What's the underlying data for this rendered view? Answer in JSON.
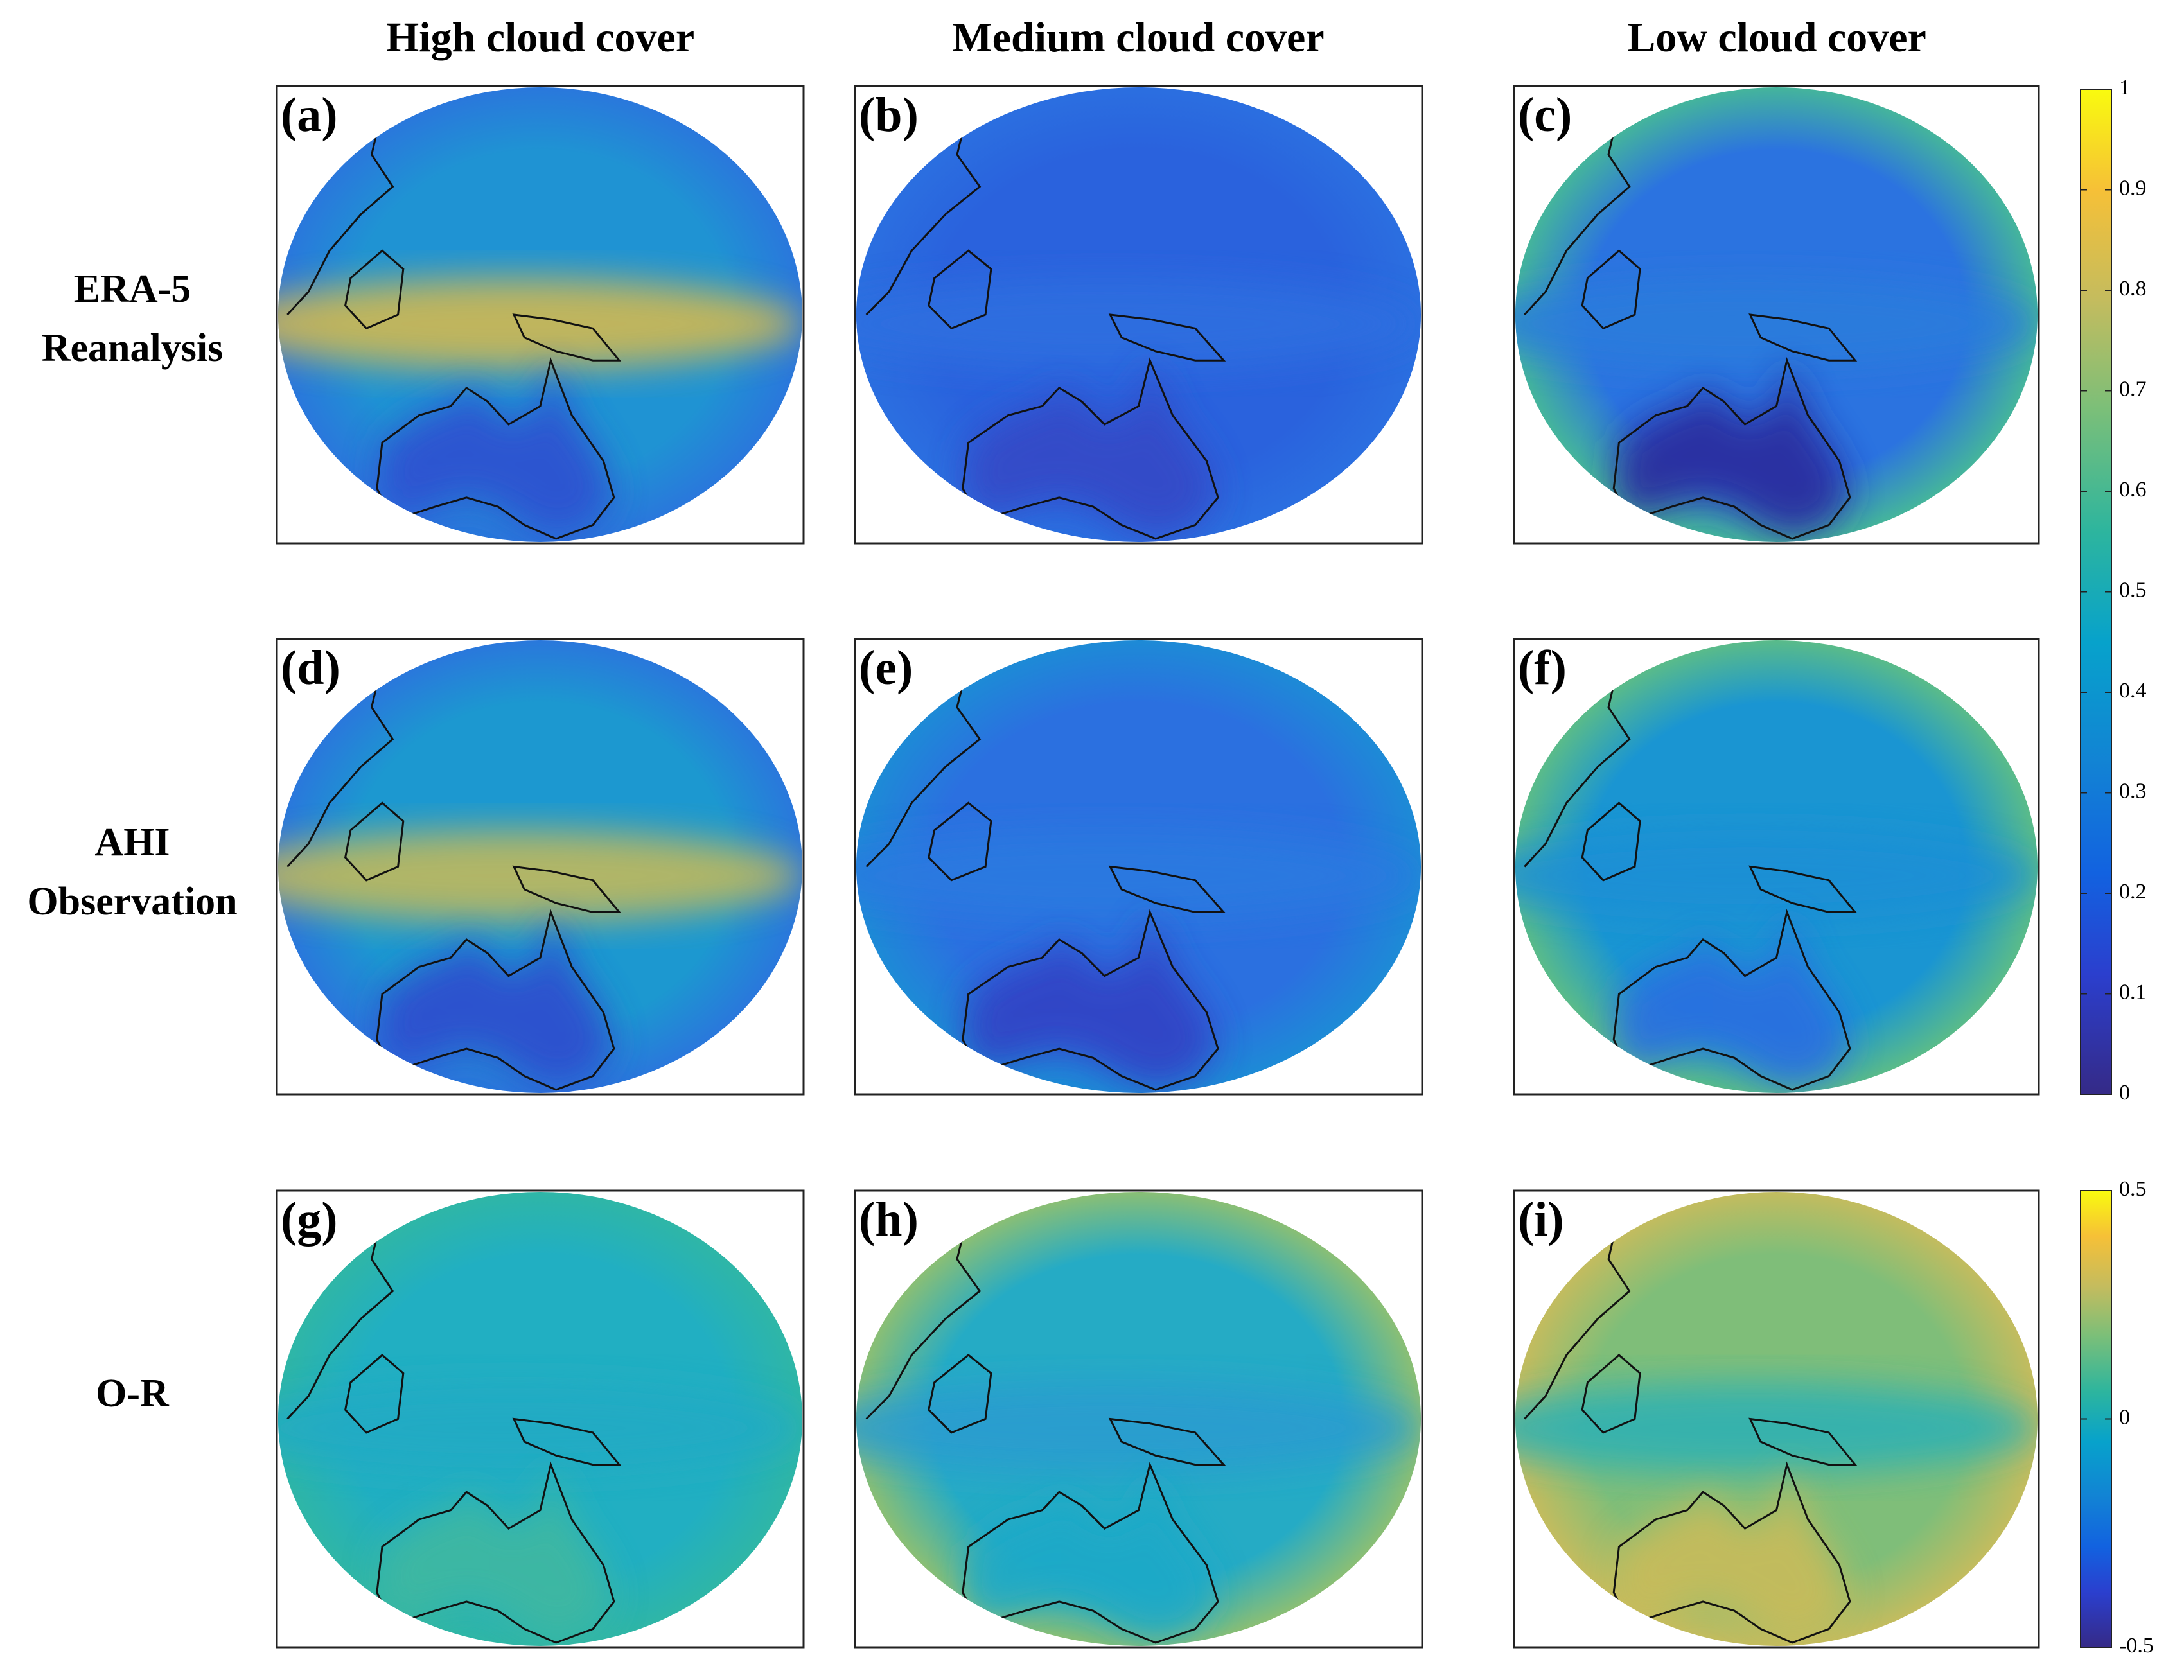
{
  "column_titles": [
    "High cloud cover",
    "Medium cloud cover",
    "Low cloud cover"
  ],
  "row_labels": [
    [
      "ERA-5",
      "Reanalysis"
    ],
    [
      "AHI",
      "Observation"
    ],
    [
      "O-R"
    ]
  ],
  "panels": [
    "(a)",
    "(b)",
    "(c)",
    "(d)",
    "(e)",
    "(f)",
    "(g)",
    "(h)",
    "(i)"
  ],
  "colorbars": [
    {
      "ylim": [
        0,
        1
      ],
      "yticks": [
        0,
        0.1,
        0.2,
        0.3,
        0.4,
        0.5,
        0.6,
        0.7,
        0.8,
        0.9,
        1
      ]
    },
    {
      "ylim": [
        -0.5,
        0.5
      ],
      "yticks": [
        -0.5,
        0,
        0.5
      ]
    }
  ]
}
